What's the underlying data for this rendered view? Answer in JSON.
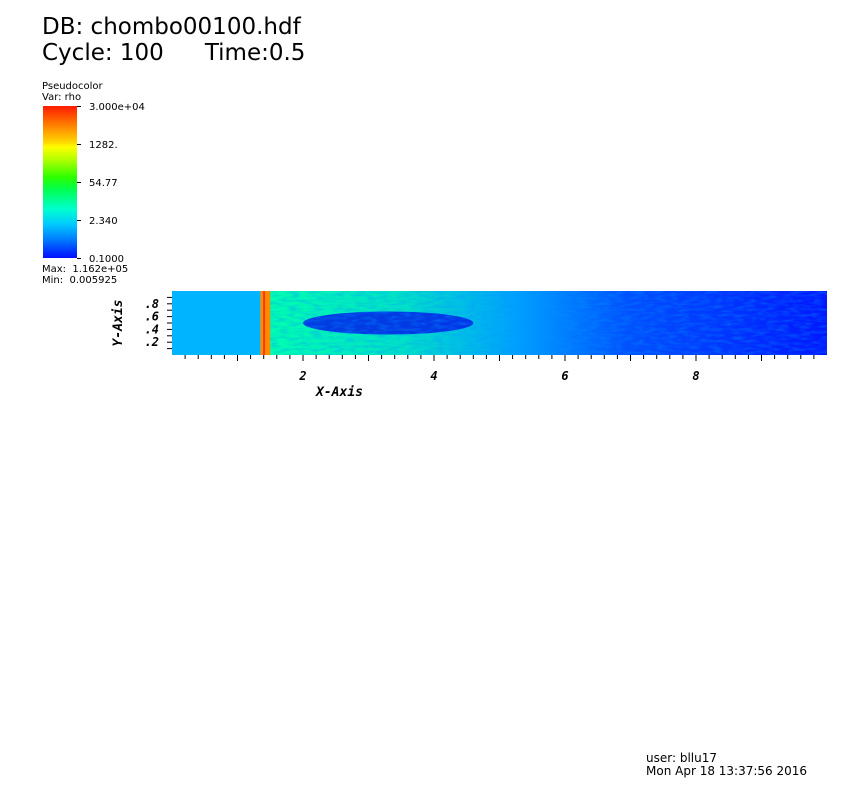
{
  "header": {
    "db": "DB: chombo00100.hdf",
    "cycle": "Cycle: 100",
    "time": "Time:0.5"
  },
  "legend": {
    "plot_type": "Pseudocolor",
    "variable": "Var: rho",
    "ticks": [
      "3.000e+04",
      "1282.",
      "54.77",
      "2.340",
      "0.1000"
    ],
    "max": "Max:  1.162e+05",
    "min": "Min:  0.005925",
    "scale": "log"
  },
  "footer": {
    "user": "user: bllu17",
    "date": "Mon Apr 18 13:37:56 2016"
  },
  "chart_data": {
    "type": "heatmap",
    "variable": "rho",
    "xlabel": "X-Axis",
    "ylabel": "Y-Axis",
    "xlim": [
      0,
      10
    ],
    "ylim": [
      0,
      1
    ],
    "xticks": [
      2,
      4,
      6,
      8
    ],
    "yticks": [
      0.2,
      0.4,
      0.6,
      0.8
    ],
    "color_range": [
      0.1,
      30000
    ],
    "colors": {
      "left_region": "#00b4ff",
      "shock_front": "#ff8a00",
      "mid_field": "#00ffb0",
      "far_field": "#0018ff",
      "core": "#0028e8"
    }
  }
}
